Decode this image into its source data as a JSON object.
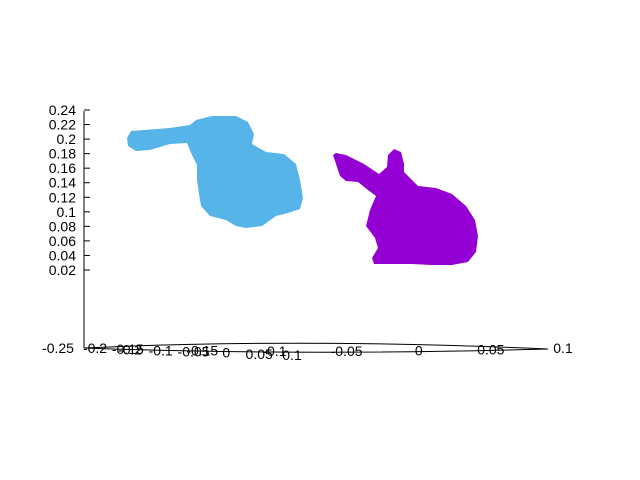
{
  "chart_data": {
    "type": "scatter",
    "projection": "3d",
    "grid": false,
    "legend": "none",
    "axes": {
      "z": {
        "ticks": [
          "0.24",
          "0.22",
          "0.2",
          "0.18",
          "0.16",
          "0.14",
          "0.12",
          "0.1",
          "0.08",
          "0.06",
          "0.04",
          "0.02"
        ],
        "range": [
          0,
          0.24
        ]
      },
      "x": {
        "ticks": [
          "-0.25",
          "-0.2",
          "-0.15",
          "-0.1",
          "-0.05",
          "0",
          "0.05",
          "0.1"
        ],
        "range": [
          -0.25,
          0.1
        ]
      },
      "y": {
        "ticks": [
          "-0.2",
          "-0.15",
          "-0.1",
          "-0.05",
          "0",
          "0.05",
          "0.1"
        ],
        "range": [
          -0.2,
          0.1
        ]
      }
    },
    "series": [
      {
        "shape": "bunny",
        "orientation": "facing-left",
        "color": "#56b4e9",
        "z_range": [
          0.07,
          0.23
        ]
      },
      {
        "shape": "bunny",
        "orientation": "facing-right",
        "color": "#9400d3",
        "z_range": [
          0.03,
          0.18
        ]
      }
    ]
  }
}
